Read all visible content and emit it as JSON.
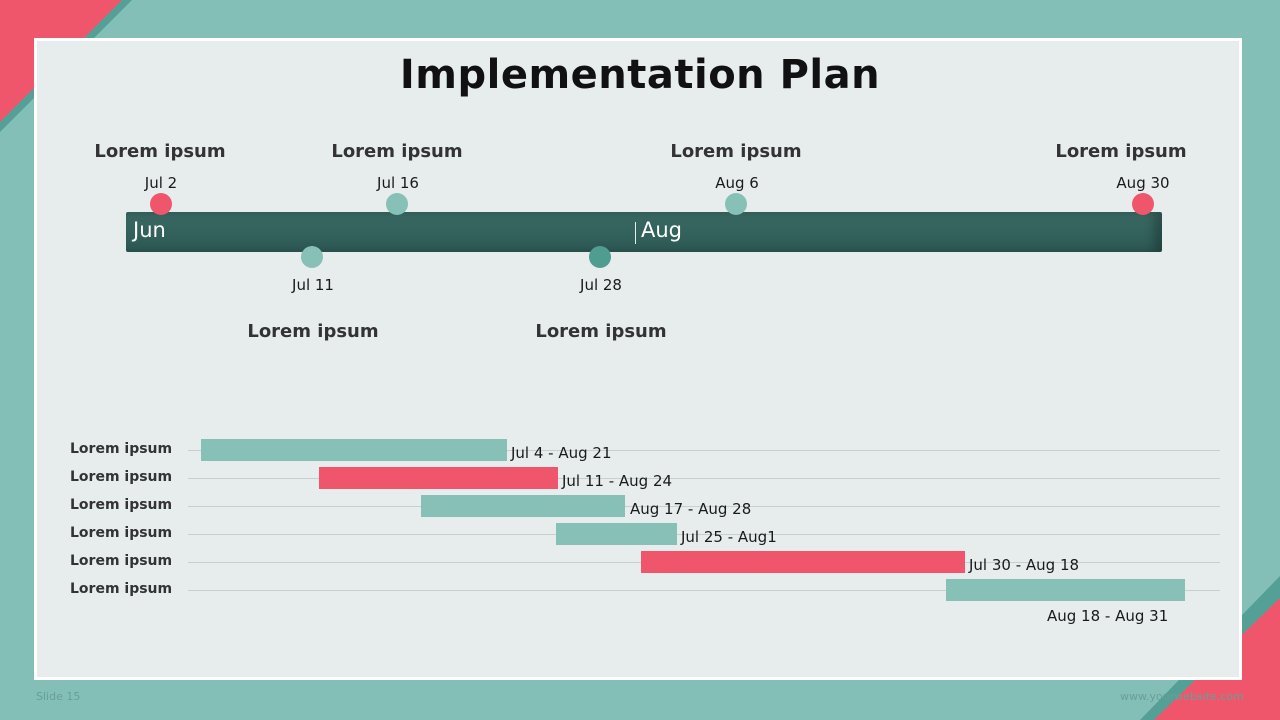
{
  "slide": {
    "title": "Implementation Plan",
    "slide_number": "Slide 15",
    "website": "www.yourwebsite.com",
    "colors": {
      "background": "#84bfb7",
      "panel": "#e7eded",
      "bar": "#2f5c57",
      "teal": "#87c0b7",
      "coral": "#f0566b",
      "dark_teal": "#4f9c91"
    }
  },
  "timeline": {
    "months": [
      {
        "label": "Jun"
      },
      {
        "label": "Aug"
      }
    ],
    "milestones": [
      {
        "date": "Jul 2",
        "label": "Lorem ipsum",
        "side": "above",
        "color": "#f0566b"
      },
      {
        "date": "Jul 16",
        "label": "Lorem ipsum",
        "side": "above",
        "color": "#87c0b7"
      },
      {
        "date": "Aug 6",
        "label": "Lorem ipsum",
        "side": "above",
        "color": "#87c0b7"
      },
      {
        "date": "Aug 30",
        "label": "Lorem ipsum",
        "side": "above",
        "color": "#f0566b"
      },
      {
        "date": "Jul 11",
        "label": "Lorem ipsum",
        "side": "below",
        "color": "#87c0b7"
      },
      {
        "date": "Jul 28",
        "label": "Lorem ipsum",
        "side": "below",
        "color": "#4f9c91"
      }
    ]
  },
  "gantt": {
    "tasks": [
      {
        "label": "Lorem ipsum",
        "range": "Jul 4 - Aug 21",
        "color": "#87c0b7"
      },
      {
        "label": "Lorem ipsum",
        "range": "Jul 11 - Aug 24",
        "color": "#f0566b"
      },
      {
        "label": "Lorem ipsum",
        "range": "Aug 17 - Aug 28",
        "color": "#87c0b7"
      },
      {
        "label": "Lorem ipsum",
        "range": "Jul 25 - Aug1",
        "color": "#87c0b7"
      },
      {
        "label": "Lorem ipsum",
        "range": "Jul 30 - Aug 18",
        "color": "#f0566b"
      },
      {
        "label": "Lorem ipsum",
        "range": "Aug 18 - Aug 31",
        "color": "#87c0b7"
      }
    ]
  }
}
